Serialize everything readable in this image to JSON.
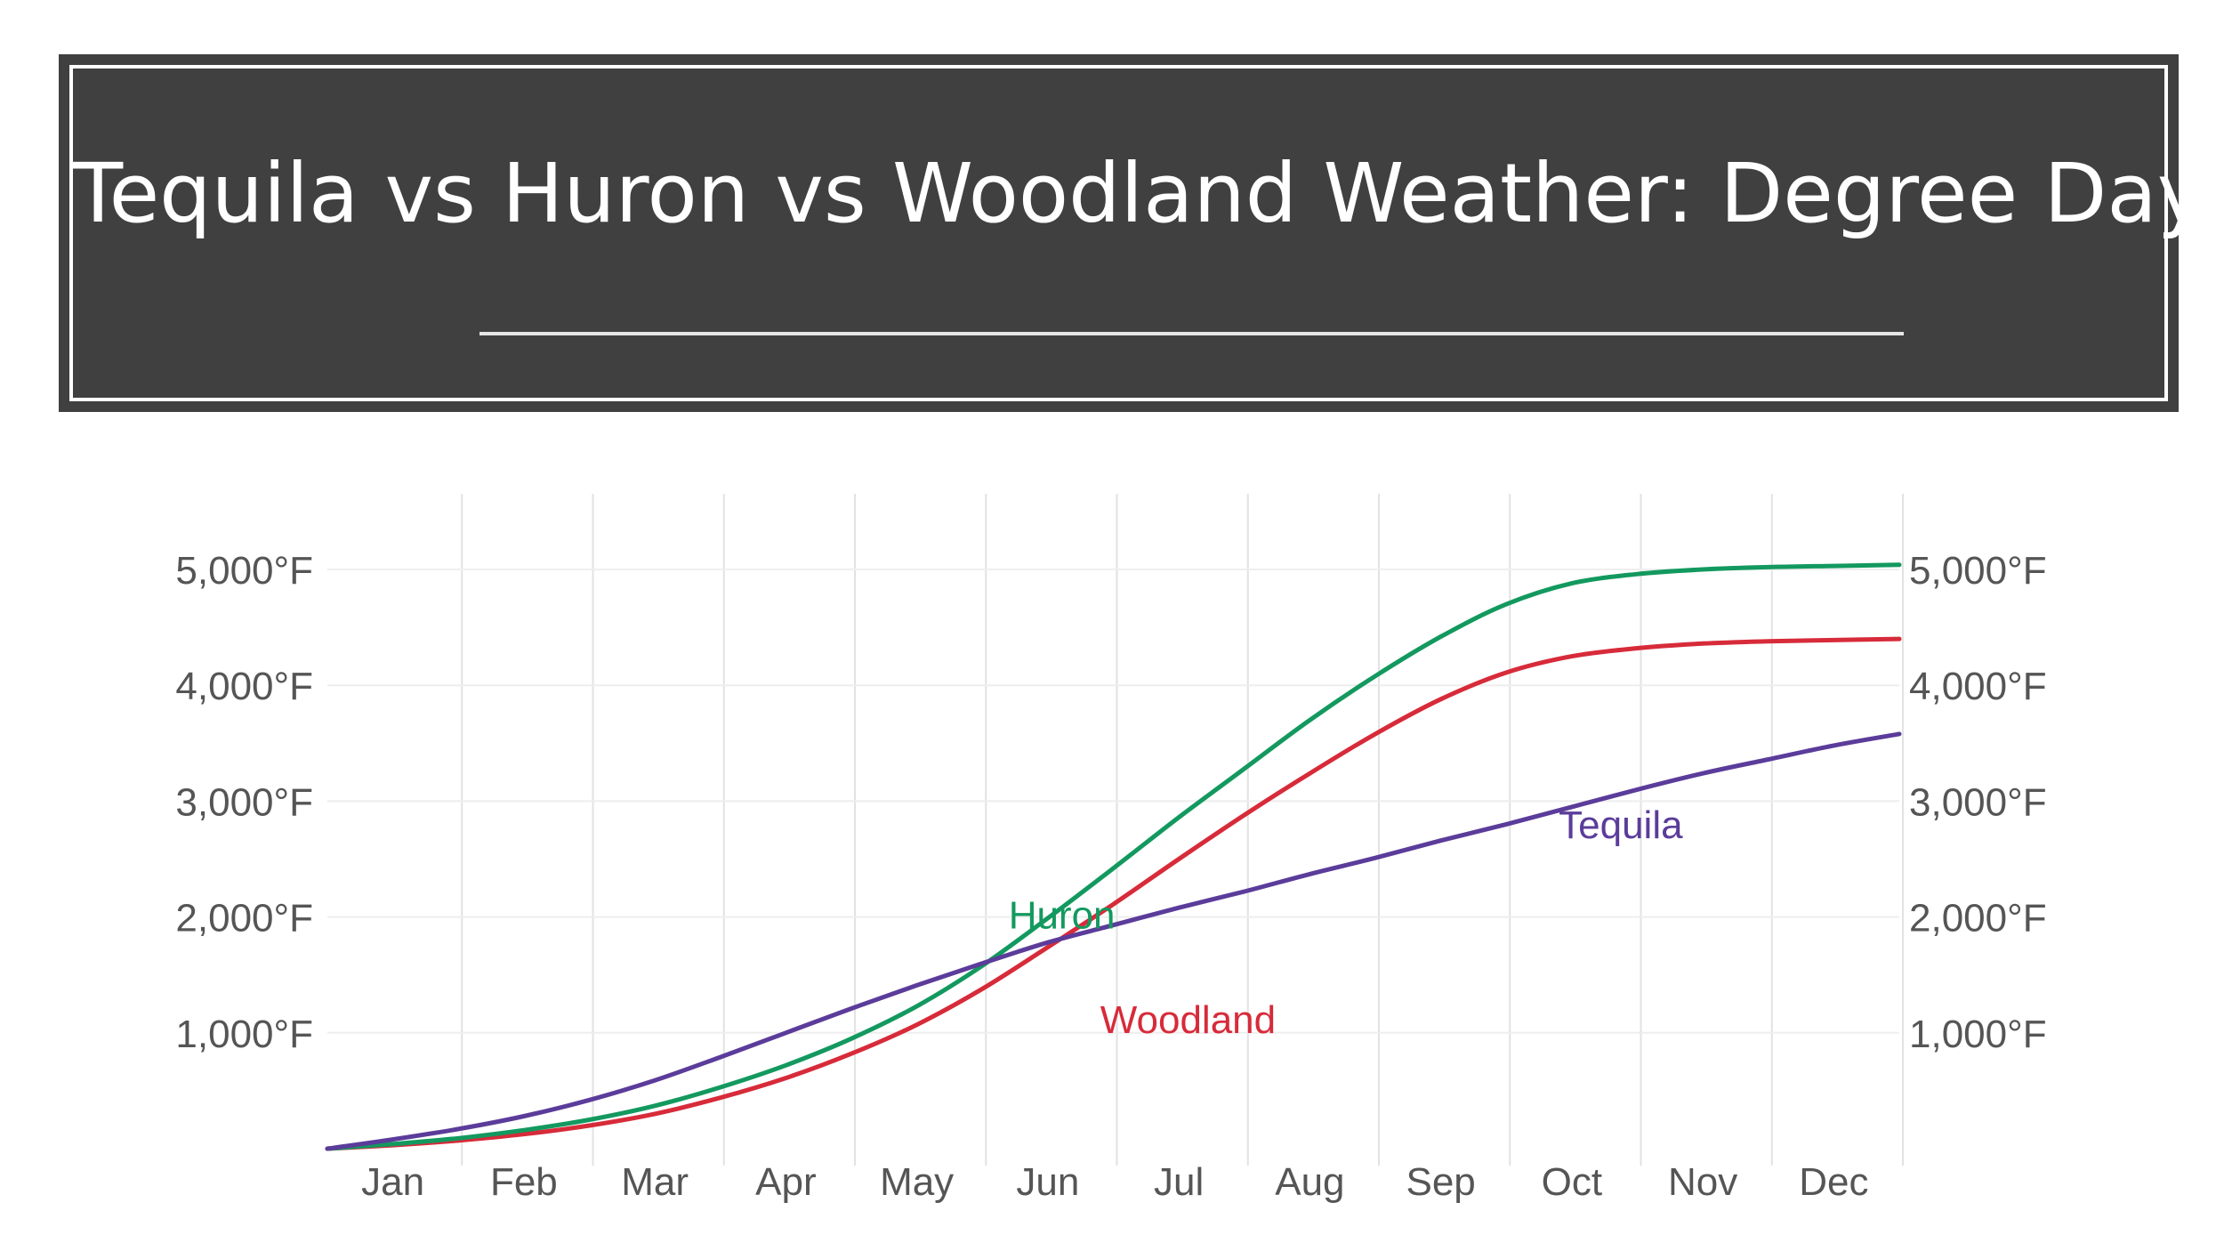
{
  "header": {
    "title": "Tequila vs Huron vs Woodland Weather: Degree Days"
  },
  "colors": {
    "title_background": "#404040",
    "Tequila": "#5b3c9a",
    "Huron": "#13995f",
    "Woodland": "#d72b3a",
    "grid": "#e2e2e2",
    "tick_text": "#555555"
  },
  "chart_data": {
    "type": "line",
    "title": "",
    "xlabel": "",
    "ylabel": "",
    "ylim": [
      0,
      5000
    ],
    "grid": true,
    "legend": "inline labels on lines",
    "y_ticks": [
      1000,
      2000,
      3000,
      4000,
      5000
    ],
    "y_tick_labels": [
      "1,000°F",
      "2,000°F",
      "3,000°F",
      "4,000°F",
      "5,000°F"
    ],
    "y_axis_sides": "left and right",
    "categories": [
      "Jan",
      "Feb",
      "Mar",
      "Apr",
      "May",
      "Jun",
      "Jul",
      "Aug",
      "Sep",
      "Oct",
      "Nov",
      "Dec"
    ],
    "x": [
      0,
      0.5,
      1,
      1.5,
      2,
      2.5,
      3,
      3.5,
      4,
      4.5,
      5,
      5.5,
      6,
      6.5,
      7,
      7.5,
      8,
      8.5,
      9,
      9.5,
      10,
      10.5,
      11,
      11.5,
      12
    ],
    "series": [
      {
        "name": "Tequila",
        "values": [
          0,
          80,
          170,
          280,
          420,
          590,
          790,
          1000,
          1210,
          1410,
          1600,
          1780,
          1930,
          2080,
          2220,
          2370,
          2510,
          2660,
          2800,
          2950,
          3100,
          3240,
          3360,
          3480,
          3580
        ]
      },
      {
        "name": "Huron",
        "values": [
          0,
          40,
          90,
          160,
          250,
          370,
          530,
          720,
          950,
          1230,
          1580,
          1990,
          2420,
          2860,
          3280,
          3700,
          4080,
          4420,
          4700,
          4880,
          4960,
          5000,
          5020,
          5030,
          5040
        ]
      },
      {
        "name": "Woodland",
        "values": [
          0,
          30,
          70,
          125,
          200,
          300,
          440,
          610,
          820,
          1070,
          1380,
          1740,
          2110,
          2500,
          2880,
          3240,
          3580,
          3880,
          4110,
          4250,
          4320,
          4360,
          4380,
          4390,
          4400
        ]
      }
    ],
    "annotations": [
      {
        "text": "Huron",
        "series": "Huron",
        "x": 5.2,
        "y": 1900
      },
      {
        "text": "Woodland",
        "series": "Woodland",
        "x": 5.9,
        "y": 1000
      },
      {
        "text": "Tequila",
        "series": "Tequila",
        "x": 9.4,
        "y": 2680
      }
    ]
  }
}
